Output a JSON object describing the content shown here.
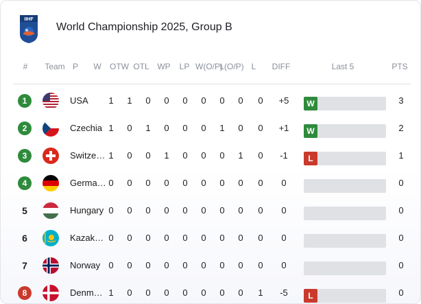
{
  "header": {
    "title": "World Championship 2025, Group B",
    "logo_text": "IIHF"
  },
  "columns": {
    "pos": "#",
    "team": "Team",
    "p": "P",
    "w": "W",
    "otw": "OTW",
    "otl": "OTL",
    "wp": "WP",
    "lp": "LP",
    "wop": "W(O/P)",
    "lop": "L(O/P)",
    "l": "L",
    "diff": "DIFF",
    "last5": "Last 5",
    "pts": "PTS"
  },
  "colors": {
    "qualify": "#2e8b3c",
    "relegate": "#c93a2c",
    "win": "#2e8b3c",
    "loss": "#c93a2c",
    "last5_track": "#e0e1e5"
  },
  "rows": [
    {
      "pos": "1",
      "status": "qualify",
      "flag": "usa-flag-icon",
      "team": "USA",
      "p": "1",
      "w": "1",
      "otw": "0",
      "otl": "0",
      "wp": "0",
      "lp": "0",
      "wop": "0",
      "lop": "0",
      "l": "0",
      "diff": "+5",
      "last5": [
        "W"
      ],
      "pts": "3"
    },
    {
      "pos": "2",
      "status": "qualify",
      "flag": "czechia-flag-icon",
      "team": "Czechia",
      "p": "1",
      "w": "0",
      "otw": "1",
      "otl": "0",
      "wp": "0",
      "lp": "0",
      "wop": "1",
      "lop": "0",
      "l": "0",
      "diff": "+1",
      "last5": [
        "W"
      ],
      "pts": "2"
    },
    {
      "pos": "3",
      "status": "qualify",
      "flag": "switzerland-flag-icon",
      "team": "Switze…",
      "p": "1",
      "w": "0",
      "otw": "0",
      "otl": "1",
      "wp": "0",
      "lp": "0",
      "wop": "0",
      "lop": "1",
      "l": "0",
      "diff": "-1",
      "last5": [
        "L"
      ],
      "pts": "1"
    },
    {
      "pos": "4",
      "status": "qualify",
      "flag": "germany-flag-icon",
      "team": "Germa…",
      "p": "0",
      "w": "0",
      "otw": "0",
      "otl": "0",
      "wp": "0",
      "lp": "0",
      "wop": "0",
      "lop": "0",
      "l": "0",
      "diff": "0",
      "last5": [],
      "pts": "0"
    },
    {
      "pos": "5",
      "status": "none",
      "flag": "hungary-flag-icon",
      "team": "Hungary",
      "p": "0",
      "w": "0",
      "otw": "0",
      "otl": "0",
      "wp": "0",
      "lp": "0",
      "wop": "0",
      "lop": "0",
      "l": "0",
      "diff": "0",
      "last5": [],
      "pts": "0"
    },
    {
      "pos": "6",
      "status": "none",
      "flag": "kazakhstan-flag-icon",
      "team": "Kazak…",
      "p": "0",
      "w": "0",
      "otw": "0",
      "otl": "0",
      "wp": "0",
      "lp": "0",
      "wop": "0",
      "lop": "0",
      "l": "0",
      "diff": "0",
      "last5": [],
      "pts": "0"
    },
    {
      "pos": "7",
      "status": "none",
      "flag": "norway-flag-icon",
      "team": "Norway",
      "p": "0",
      "w": "0",
      "otw": "0",
      "otl": "0",
      "wp": "0",
      "lp": "0",
      "wop": "0",
      "lop": "0",
      "l": "0",
      "diff": "0",
      "last5": [],
      "pts": "0"
    },
    {
      "pos": "8",
      "status": "relegate",
      "flag": "denmark-flag-icon",
      "team": "Denm…",
      "p": "1",
      "w": "0",
      "otw": "0",
      "otl": "0",
      "wp": "0",
      "lp": "0",
      "wop": "0",
      "lop": "0",
      "l": "1",
      "diff": "-5",
      "last5": [
        "L"
      ],
      "pts": "0"
    }
  ]
}
